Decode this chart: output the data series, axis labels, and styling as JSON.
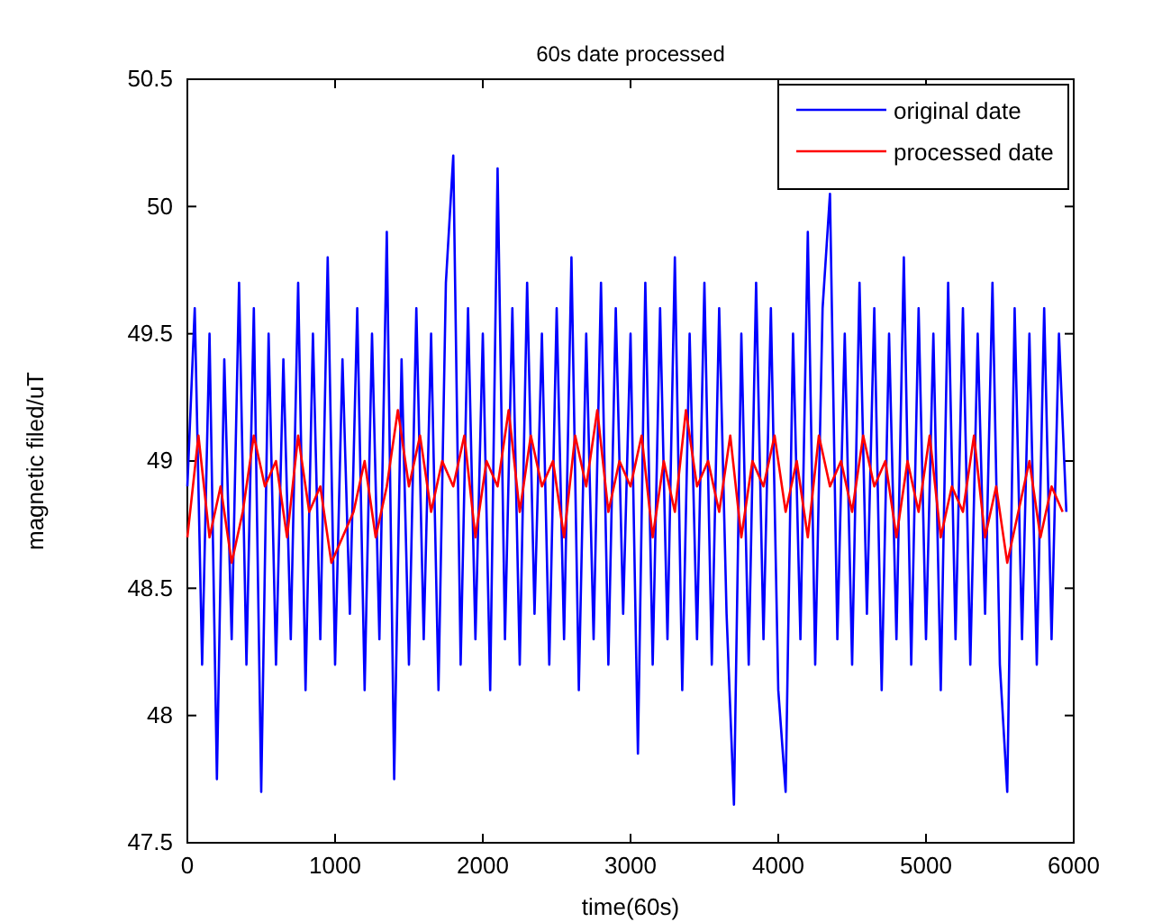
{
  "chart_data": {
    "type": "line",
    "title": "60s date processed",
    "xlabel": "time(60s)",
    "ylabel": "magnetic filed/uT",
    "xlim": [
      0,
      6000
    ],
    "xticks": [
      0,
      1000,
      2000,
      3000,
      4000,
      5000,
      6000
    ],
    "ylim": [
      47.5,
      50.5
    ],
    "yticks": [
      47.5,
      48,
      48.5,
      49,
      49.5,
      50,
      50.5
    ],
    "grid": false,
    "legend": "top right",
    "line_style": "solid",
    "marker": "none",
    "series": [
      {
        "name": "original date",
        "color": "#0000ff",
        "x": [
          0,
          50,
          100,
          150,
          200,
          250,
          300,
          350,
          400,
          450,
          500,
          550,
          600,
          650,
          700,
          750,
          800,
          850,
          900,
          950,
          1000,
          1050,
          1100,
          1150,
          1200,
          1250,
          1300,
          1350,
          1400,
          1450,
          1500,
          1550,
          1600,
          1650,
          1700,
          1750,
          1800,
          1850,
          1900,
          1950,
          2000,
          2050,
          2100,
          2150,
          2200,
          2250,
          2300,
          2350,
          2400,
          2450,
          2500,
          2550,
          2600,
          2650,
          2700,
          2750,
          2800,
          2850,
          2900,
          2950,
          3000,
          3050,
          3100,
          3150,
          3200,
          3250,
          3300,
          3350,
          3400,
          3450,
          3500,
          3550,
          3600,
          3650,
          3700,
          3750,
          3800,
          3850,
          3900,
          3950,
          4000,
          4050,
          4100,
          4150,
          4200,
          4250,
          4300,
          4350,
          4400,
          4450,
          4500,
          4550,
          4600,
          4650,
          4700,
          4750,
          4800,
          4850,
          4900,
          4950,
          5000,
          5050,
          5100,
          5150,
          5200,
          5250,
          5300,
          5350,
          5400,
          5450,
          5500,
          5550,
          5600,
          5650,
          5700,
          5750,
          5800,
          5850,
          5900,
          5950
        ],
        "values": [
          48.9,
          49.6,
          48.2,
          49.5,
          47.75,
          49.4,
          48.3,
          49.7,
          48.2,
          49.6,
          47.7,
          49.5,
          48.2,
          49.4,
          48.3,
          49.7,
          48.1,
          49.5,
          48.3,
          49.8,
          48.2,
          49.4,
          48.4,
          49.6,
          48.1,
          49.5,
          48.3,
          49.9,
          47.75,
          49.4,
          48.2,
          49.6,
          48.3,
          49.5,
          48.1,
          49.7,
          50.2,
          48.2,
          49.6,
          48.3,
          49.5,
          48.1,
          50.15,
          48.3,
          49.6,
          48.2,
          49.7,
          48.4,
          49.5,
          48.2,
          49.6,
          48.3,
          49.8,
          48.1,
          49.5,
          48.3,
          49.7,
          48.2,
          49.6,
          48.4,
          49.5,
          47.85,
          49.7,
          48.2,
          49.6,
          48.3,
          49.8,
          48.1,
          49.5,
          48.3,
          49.7,
          48.2,
          49.6,
          48.4,
          47.65,
          49.5,
          48.2,
          49.7,
          48.3,
          49.6,
          48.1,
          47.7,
          49.5,
          48.3,
          49.9,
          48.2,
          49.6,
          50.05,
          48.3,
          49.5,
          48.2,
          49.7,
          48.4,
          49.6,
          48.1,
          49.5,
          48.3,
          49.8,
          48.2,
          49.6,
          48.3,
          49.5,
          48.1,
          49.7,
          48.3,
          49.6,
          48.2,
          49.5,
          48.4,
          49.7,
          48.2,
          47.7,
          49.6,
          48.3,
          49.5,
          48.2,
          49.6,
          48.3,
          49.5,
          48.8
        ]
      },
      {
        "name": "processed date",
        "color": "#ff0000",
        "x": [
          0,
          75,
          150,
          225,
          300,
          375,
          450,
          525,
          600,
          675,
          750,
          825,
          900,
          975,
          1050,
          1125,
          1200,
          1275,
          1350,
          1425,
          1500,
          1575,
          1650,
          1725,
          1800,
          1875,
          1950,
          2025,
          2100,
          2175,
          2250,
          2325,
          2400,
          2475,
          2550,
          2625,
          2700,
          2775,
          2850,
          2925,
          3000,
          3075,
          3150,
          3225,
          3300,
          3375,
          3450,
          3525,
          3600,
          3675,
          3750,
          3825,
          3900,
          3975,
          4050,
          4125,
          4200,
          4275,
          4350,
          4425,
          4500,
          4575,
          4650,
          4725,
          4800,
          4875,
          4950,
          5025,
          5100,
          5175,
          5250,
          5325,
          5400,
          5475,
          5550,
          5625,
          5700,
          5775,
          5850,
          5925
        ],
        "values": [
          48.7,
          49.1,
          48.7,
          48.9,
          48.6,
          48.8,
          49.1,
          48.9,
          49.0,
          48.7,
          49.1,
          48.8,
          48.9,
          48.6,
          48.7,
          48.8,
          49.0,
          48.7,
          48.9,
          49.2,
          48.9,
          49.1,
          48.8,
          49.0,
          48.9,
          49.1,
          48.7,
          49.0,
          48.9,
          49.2,
          48.8,
          49.1,
          48.9,
          49.0,
          48.7,
          49.1,
          48.9,
          49.2,
          48.8,
          49.0,
          48.9,
          49.1,
          48.7,
          49.0,
          48.8,
          49.2,
          48.9,
          49.0,
          48.8,
          49.1,
          48.7,
          49.0,
          48.9,
          49.1,
          48.8,
          49.0,
          48.7,
          49.1,
          48.9,
          49.0,
          48.8,
          49.1,
          48.9,
          49.0,
          48.7,
          49.0,
          48.8,
          49.1,
          48.7,
          48.9,
          48.8,
          49.1,
          48.7,
          48.9,
          48.6,
          48.8,
          49.0,
          48.7,
          48.9,
          48.8
        ]
      }
    ]
  }
}
